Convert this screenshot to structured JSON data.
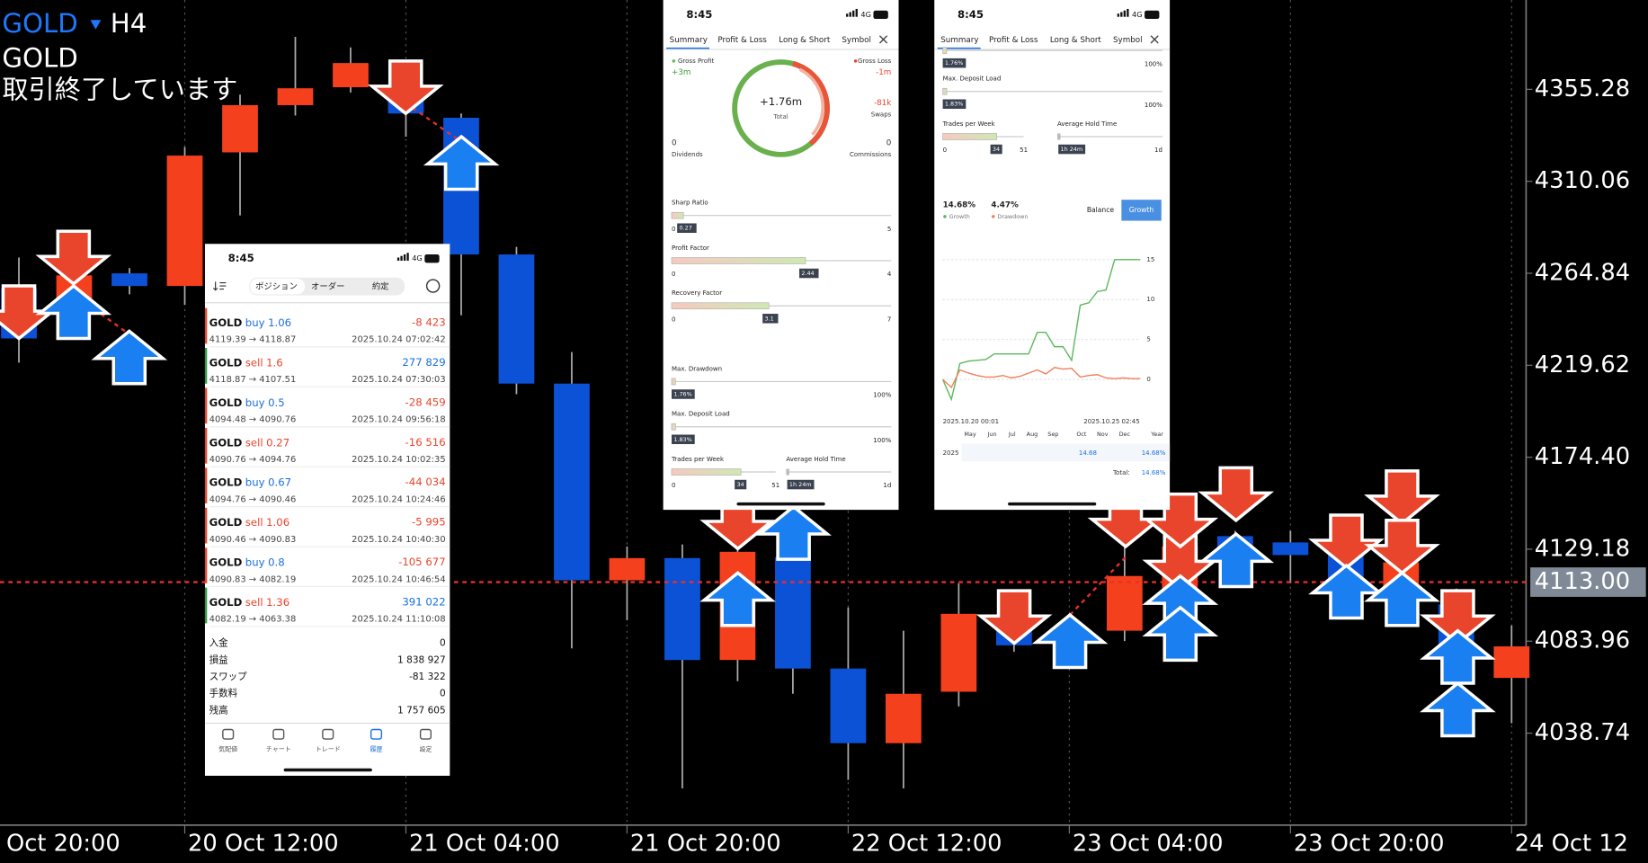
{
  "header": {
    "symbol": "GOLD",
    "timeframe": "H4",
    "symbol_name": "GOLD",
    "status": "取引終了しています"
  },
  "chart_data": {
    "type": "candlestick",
    "open": [
      4257.1,
      4245.2,
      4264.8,
      4258.6,
      4324.3,
      4347.5,
      4356.3,
      4355.3,
      4341.3,
      4274.1,
      4210.6,
      4113.9,
      4124.8,
      4074.7,
      4125.3,
      4070.5,
      4033.8,
      4059.1,
      4097.4,
      4090.2,
      4089.1,
      4109.8,
      4135.6,
      4132.5,
      4126.3,
      4109.8,
      4102.0,
      4065.9
    ],
    "high": [
      4272.6,
      4277.8,
      4267.4,
      4326.9,
      4352.7,
      4381.1,
      4375.9,
      4368.2,
      4343.4,
      4277.8,
      4226.1,
      4130.5,
      4131.5,
      4138.2,
      4138.2,
      4100.5,
      4089.1,
      4112.4,
      4102.0,
      4094.3,
      4130.5,
      4140.8,
      4138.2,
      4138.2,
      4130.5,
      4127.9,
      4109.8,
      4091.7
    ],
    "low": [
      4220.9,
      4239.0,
      4254.5,
      4249.3,
      4293.3,
      4342.4,
      4353.7,
      4332.0,
      4244.2,
      4205.4,
      4080.4,
      4094.3,
      4011.6,
      4064.3,
      4058.1,
      4015.8,
      4011.6,
      4051.9,
      4078.8,
      4083.0,
      4084.0,
      4094.3,
      4113.9,
      4112.4,
      4100.5,
      4100.5,
      4068.5,
      4043.6
    ],
    "close": [
      4232.8,
      4263.8,
      4258.6,
      4322.7,
      4347.5,
      4355.8,
      4368.2,
      4343.4,
      4274.1,
      4210.6,
      4113.9,
      4124.8,
      4074.7,
      4127.9,
      4070.5,
      4033.8,
      4058.1,
      4097.4,
      4081.9,
      4087.1,
      4116.0,
      4130.5,
      4125.3,
      4126.3,
      4112.4,
      4122.7,
      4079.8,
      4081.4
    ],
    "up_color": "#f5401e",
    "down_color": "#0c52d6",
    "xlim": [
      -0.342,
      27.262
    ],
    "xticks": [
      {
        "value": -1,
        "label": "Oct 20:00"
      },
      {
        "value": 3,
        "label": "20 Oct 12:00"
      },
      {
        "value": 7,
        "label": "21 Oct 04:00"
      },
      {
        "value": 11,
        "label": "21 Oct 20:00"
      },
      {
        "value": 15,
        "label": "22 Oct 12:00"
      },
      {
        "value": 19,
        "label": "23 Oct 04:00"
      },
      {
        "value": 23,
        "label": "23 Oct 20:00"
      },
      {
        "value": 27,
        "label": "24 Oct 12"
      }
    ],
    "ylim": [
      3993.5,
      4399.2
    ],
    "yticks": [
      4355.28,
      4310.06,
      4264.84,
      4219.62,
      {
        "value": 4174.4,
        "label": "4174.40"
      },
      4129.18,
      4083.96,
      4038.74
    ],
    "current_price": {
      "value": 4113,
      "label": "4113.00"
    }
  },
  "history_panel": {
    "status": {
      "time": "8:45",
      "network": "4G"
    },
    "tabs": [
      "ポジション",
      "オーダー",
      "約定"
    ],
    "rows": [
      {
        "symbol": "GOLD",
        "side": "buy",
        "volume": "1.06",
        "profit": "-8 423",
        "prices": "4119.39 → 4118.87",
        "time": "2025.10.24 07:02:42"
      },
      {
        "symbol": "GOLD",
        "side": "sell",
        "volume": "1.6",
        "profit": "277 829",
        "prices": "4118.87 → 4107.51",
        "time": "2025.10.24 07:30:03"
      },
      {
        "symbol": "GOLD",
        "side": "buy",
        "volume": "0.5",
        "profit": "-28 459",
        "prices": "4094.48 → 4090.76",
        "time": "2025.10.24 09:56:18"
      },
      {
        "symbol": "GOLD",
        "side": "sell",
        "volume": "0.27",
        "profit": "-16 516",
        "prices": "4090.76 → 4094.76",
        "time": "2025.10.24 10:02:35"
      },
      {
        "symbol": "GOLD",
        "side": "buy",
        "volume": "0.67",
        "profit": "-44 034",
        "prices": "4094.76 → 4090.46",
        "time": "2025.10.24 10:24:46"
      },
      {
        "symbol": "GOLD",
        "side": "sell",
        "volume": "1.06",
        "profit": "-5 995",
        "prices": "4090.46 → 4090.83",
        "time": "2025.10.24 10:40:30"
      },
      {
        "symbol": "GOLD",
        "side": "buy",
        "volume": "0.8",
        "profit": "-105 677",
        "prices": "4090.83 → 4082.19",
        "time": "2025.10.24 10:46:54"
      },
      {
        "symbol": "GOLD",
        "side": "sell",
        "volume": "1.36",
        "profit": "391 022",
        "prices": "4082.19 → 4063.38",
        "time": "2025.10.24 11:10:08"
      }
    ],
    "summary": [
      {
        "label": "入金",
        "value": "0"
      },
      {
        "label": "損益",
        "value": "1 838 927"
      },
      {
        "label": "スワップ",
        "value": "-81 322"
      },
      {
        "label": "手数料",
        "value": "0"
      },
      {
        "label": "残高",
        "value": "1 757 605"
      }
    ],
    "nav": [
      "気配値",
      "チャート",
      "トレード",
      "履歴",
      "設定"
    ]
  },
  "summary_panel": {
    "status": {
      "time": "8:45",
      "network": "4G"
    },
    "tabs": [
      "Summary",
      "Profit & Loss",
      "Long & Short",
      "Symbol"
    ],
    "gross_profit": {
      "label": "Gross Profit",
      "value": "+3m"
    },
    "gross_loss": {
      "label": "Gross Loss",
      "value": "-1m"
    },
    "total": {
      "label": "Total",
      "value": "+1.76m"
    },
    "swaps": {
      "label": "Swaps",
      "value": "-81k"
    },
    "dividends": {
      "label": "Dividends",
      "value": "0"
    },
    "commissions": {
      "label": "Commissions",
      "value": "0"
    },
    "gauges": [
      {
        "label": "Sharp Ratio",
        "value": 0.27,
        "min": 0,
        "max": 5
      },
      {
        "label": "Profit Factor",
        "value": 2.44,
        "min": 0,
        "max": 4
      },
      {
        "label": "Recovery Factor",
        "value": 3.1,
        "min": 0,
        "max": 7
      },
      {
        "label": "Max. Drawdown",
        "value": {
          "value": 1.76,
          "label": "1.76%"
        },
        "max": {
          "value": 100,
          "label": "100%"
        }
      },
      {
        "label": "Max. Deposit Load",
        "value": {
          "value": 1.83,
          "label": "1.83%"
        },
        "max": {
          "value": 100,
          "label": "100%"
        }
      }
    ],
    "trades_per_week": {
      "label": "Trades per Week",
      "value": 34,
      "min": 0,
      "max": 51
    },
    "hold_time": {
      "label": "Average Hold Time",
      "value": "1h 24m",
      "max": "1d"
    }
  },
  "growth_panel": {
    "status": {
      "time": "8:45",
      "network": "4G"
    },
    "tabs": [
      "Summary",
      "Profit & Loss",
      "Long & Short",
      "Symbol"
    ],
    "gauges": [
      {
        "value": {
          "value": 1.76,
          "label": "1.76%"
        },
        "max": {
          "value": 100,
          "label": "100%"
        }
      },
      {
        "label": "Max. Deposit Load",
        "value": {
          "value": 1.83,
          "label": "1.83%"
        },
        "max": {
          "value": 100,
          "label": "100%"
        }
      }
    ],
    "trades_per_week": {
      "label": "Trades per Week",
      "value": 34,
      "min": 0,
      "max": 51
    },
    "hold_time": {
      "label": "Average Hold Time",
      "value": "1h 24m",
      "max": "1d"
    },
    "chart": {
      "type": "line",
      "series": [
        {
          "name": "Growth",
          "summary": "14.68%",
          "color": "#5cb85c",
          "values": [
            0,
            -2.5,
            2,
            2.3,
            2.4,
            2.5,
            3.2,
            3.2,
            3.2,
            3.2,
            3.2,
            5.9,
            5.9,
            4.1,
            4.1,
            2.4,
            9.3,
            9.6,
            11,
            11.2,
            15,
            15,
            15,
            15
          ]
        },
        {
          "name": "Drawdown",
          "summary": "4.47%",
          "color": "#f0805a",
          "values": [
            0,
            -1,
            1.2,
            0.8,
            0.5,
            0.3,
            0.3,
            0.5,
            0.2,
            0.4,
            0.8,
            1.2,
            0.7,
            1.5,
            1.3,
            1.4,
            0.3,
            0.5,
            0.6,
            0.2,
            0.1,
            0.2,
            0.1,
            0.1
          ]
        }
      ],
      "ylim": [
        -3,
        16.5
      ],
      "yticks": [
        0,
        5,
        10,
        15
      ],
      "x_start": "2025.10.20 00:01",
      "x_end": "2025.10.25 02:45"
    },
    "buttons": [
      "Balance",
      "Growth"
    ],
    "table": {
      "header": [
        "May",
        "Jun",
        "Jul",
        "Aug",
        "Sep",
        "Oct",
        "Nov",
        "Dec",
        "Year"
      ],
      "row": [
        "2025",
        "14.68",
        "14.68%"
      ],
      "total_label": "Total:",
      "total": "14.68%"
    }
  }
}
